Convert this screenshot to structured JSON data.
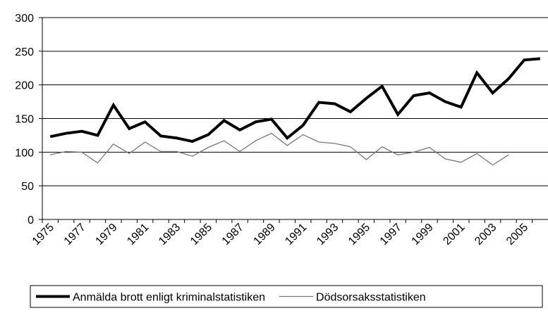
{
  "chart_data": {
    "type": "line",
    "categories": [
      "1975",
      null,
      "1977",
      null,
      "1979",
      null,
      "1981",
      null,
      "1983",
      null,
      "1985",
      null,
      "1987",
      null,
      "1989",
      null,
      "1991",
      null,
      "1993",
      null,
      "1995",
      null,
      "1997",
      null,
      "1999",
      null,
      "2001",
      null,
      "2003",
      null,
      "2005",
      null
    ],
    "series": [
      {
        "name": "Anmälda brott enligt kriminalstatistiken",
        "color": "#000000",
        "width": 4,
        "values": [
          123,
          128,
          131,
          125,
          170,
          135,
          145,
          124,
          121,
          116,
          126,
          147,
          133,
          145,
          149,
          121,
          140,
          174,
          172,
          160,
          180,
          198,
          156,
          184,
          188,
          175,
          167,
          218,
          188,
          209,
          237,
          239
        ]
      },
      {
        "name": "Dödsorsaksstatistiken",
        "color": "#777777",
        "width": 1.3,
        "values": [
          96,
          101,
          100,
          84,
          112,
          98,
          115,
          101,
          101,
          94,
          107,
          117,
          101,
          117,
          128,
          110,
          126,
          115,
          113,
          108,
          89,
          108,
          96,
          100,
          107,
          90,
          85,
          98,
          81,
          96,
          null,
          null
        ]
      }
    ],
    "ylim": [
      0,
      300
    ],
    "yticks": [
      0,
      50,
      100,
      150,
      200,
      250,
      300
    ],
    "grid": true,
    "legend": "bottom"
  }
}
